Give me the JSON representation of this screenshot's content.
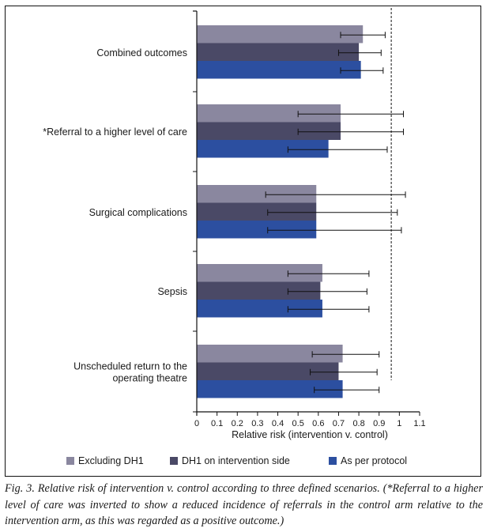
{
  "chart_data": {
    "type": "bar",
    "orientation": "horizontal",
    "title": "",
    "xlabel": "Relative risk (intervention v. control)",
    "ylabel": "",
    "xlim": [
      0,
      1.1
    ],
    "xticks": [
      0,
      0.1,
      0.2,
      0.3,
      0.4,
      0.5,
      0.6,
      0.7,
      0.8,
      0.9,
      1,
      1.1
    ],
    "xtick_labels": [
      "0",
      "0.1",
      "0.2",
      "0.3",
      "0.4",
      "0.5",
      "0.6",
      "0.7",
      "0.8",
      "0.9",
      "1",
      "1.1"
    ],
    "reference_line": {
      "x": 0.96,
      "style": "dashed"
    },
    "grid": false,
    "legend_position": "bottom",
    "categories": [
      [
        "Combined outcomes"
      ],
      [
        "*Referral to a higher level of care"
      ],
      [
        "Surgical complications"
      ],
      [
        "Sepsis"
      ],
      [
        "Unscheduled return to the",
        "operating theatre"
      ]
    ],
    "series": [
      {
        "name": "Excluding DH1",
        "color": "#8a879f",
        "values": [
          0.82,
          0.71,
          0.59,
          0.62,
          0.72
        ],
        "ci_low": [
          0.71,
          0.5,
          0.34,
          0.45,
          0.57
        ],
        "ci_high": [
          0.93,
          1.02,
          1.03,
          0.85,
          0.9
        ]
      },
      {
        "name": "DH1 on intervention side",
        "color": "#4a4966",
        "values": [
          0.8,
          0.71,
          0.59,
          0.61,
          0.7
        ],
        "ci_low": [
          0.7,
          0.5,
          0.35,
          0.45,
          0.56
        ],
        "ci_high": [
          0.91,
          1.02,
          0.99,
          0.84,
          0.89
        ]
      },
      {
        "name": "As per protocol",
        "color": "#2c4fa0",
        "values": [
          0.81,
          0.65,
          0.59,
          0.62,
          0.72
        ],
        "ci_low": [
          0.71,
          0.45,
          0.35,
          0.45,
          0.58
        ],
        "ci_high": [
          0.92,
          0.94,
          1.01,
          0.85,
          0.9
        ]
      }
    ]
  },
  "legend": {
    "items": [
      {
        "label": "Excluding DH1",
        "color": "#8a879f"
      },
      {
        "label": "DH1 on intervention side",
        "color": "#4a4966"
      },
      {
        "label": "As per protocol",
        "color": "#2c4fa0"
      }
    ]
  },
  "caption": "Fig. 3. Relative risk of intervention v. control according to three defined scenarios. (*Referral to a higher level of care was inverted to show a reduced incidence of referrals in the control arm relative to the intervention arm, as this was regarded as a positive outcome.)"
}
